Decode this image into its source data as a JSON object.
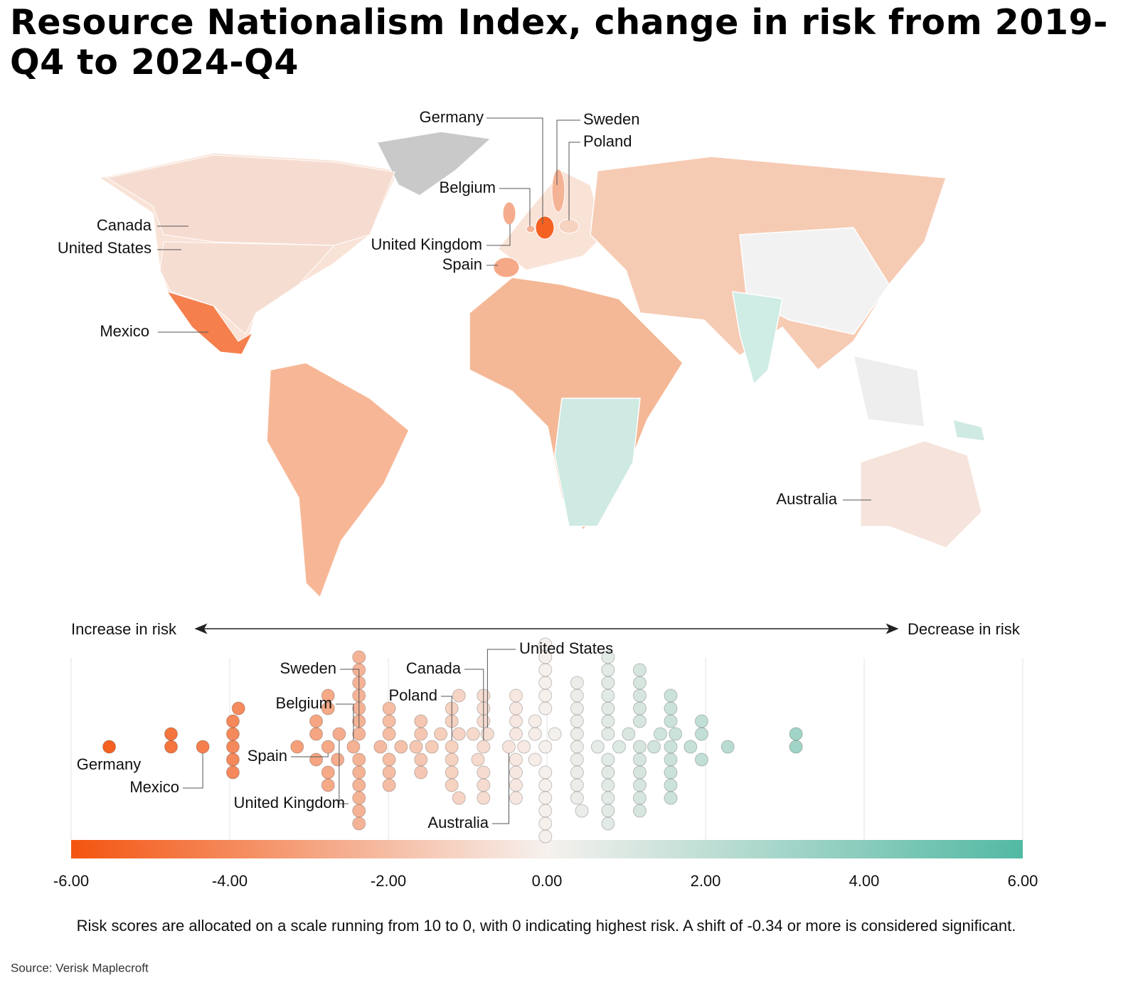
{
  "title": "Resource Nationalism Index, change in risk from 2019-Q4 to 2024-Q4",
  "source": "Source: Verisk Maplecroft",
  "chart_data": {
    "type": "beeswarm",
    "map": true,
    "left_label": "Increase in risk",
    "right_label": "Decrease in risk",
    "note": "Risk scores are allocated on a scale running from 10 to 0, with 0 indicating highest risk. A shift of -0.34 or more is considered significant.",
    "countries": [
      "Germany",
      "Mexico",
      "Spain",
      "United Kingdom",
      "Belgium",
      "Sweden",
      "Poland",
      "Canada",
      "United States",
      "Australia"
    ],
    "country_values": [
      -5.52,
      -4.34,
      -2.76,
      -2.62,
      -2.44,
      -2.37,
      -1.2,
      -0.8,
      -0.75,
      -0.48
    ],
    "values": [
      -4.74,
      -4.74,
      -3.96,
      -3.96,
      -3.96,
      -3.96,
      -3.96,
      -3.89,
      -3.15,
      -2.91,
      -2.91,
      -2.91,
      -2.76,
      -2.76,
      -2.76,
      -2.76,
      -2.64,
      -2.37,
      -2.37,
      -2.37,
      -2.37,
      -2.37,
      -2.37,
      -2.37,
      -2.37,
      -2.37,
      -2.37,
      -2.37,
      -2.37,
      -2.1,
      -1.99,
      -1.99,
      -1.99,
      -1.99,
      -1.99,
      -1.99,
      -1.84,
      -1.65,
      -1.59,
      -1.59,
      -1.59,
      -1.59,
      -1.45,
      -1.34,
      -1.2,
      -1.2,
      -1.2,
      -1.2,
      -1.2,
      -1.11,
      -1.11,
      -1.11,
      -0.93,
      -0.87,
      -0.8,
      -0.8,
      -0.8,
      -0.8,
      -0.8,
      -0.8,
      -0.39,
      -0.39,
      -0.39,
      -0.39,
      -0.39,
      -0.39,
      -0.39,
      -0.39,
      -0.29,
      -0.15,
      -0.15,
      -0.15,
      -0.02,
      -0.02,
      -0.02,
      -0.02,
      -0.02,
      -0.02,
      -0.02,
      -0.02,
      -0.02,
      -0.02,
      -0.02,
      -0.02,
      -0.02,
      0.1,
      0.38,
      0.38,
      0.38,
      0.38,
      0.38,
      0.38,
      0.38,
      0.38,
      0.38,
      0.38,
      0.44,
      0.64,
      0.77,
      0.77,
      0.77,
      0.77,
      0.77,
      0.77,
      0.77,
      0.77,
      0.77,
      0.77,
      0.77,
      0.77,
      0.77,
      0.91,
      1.03,
      1.17,
      1.17,
      1.17,
      1.17,
      1.17,
      1.17,
      1.17,
      1.17,
      1.17,
      1.17,
      1.17,
      1.35,
      1.43,
      1.56,
      1.56,
      1.56,
      1.56,
      1.56,
      1.56,
      1.56,
      1.56,
      1.62,
      1.81,
      1.95,
      1.95,
      1.95,
      2.28,
      3.14,
      3.14
    ],
    "xlim": [
      -6,
      6
    ],
    "xticks": [
      {
        "value": -6,
        "label": "-6.00"
      },
      {
        "value": -4,
        "label": "-4.00"
      },
      {
        "value": -2,
        "label": "-2.00"
      },
      {
        "value": 0,
        "label": "0.00"
      },
      {
        "value": 2,
        "label": "2.00"
      },
      {
        "value": 4,
        "label": "4.00"
      },
      {
        "value": 6,
        "label": "6.00"
      }
    ],
    "grid": true,
    "colorscale": [
      "#f4540f",
      "#f6f1ee",
      "#52b9a3"
    ]
  }
}
